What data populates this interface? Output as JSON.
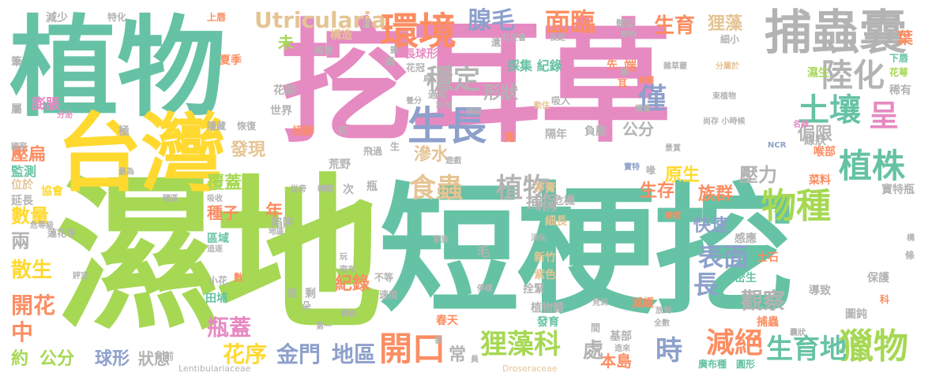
{
  "palette": {
    "pink": "#e68ac2",
    "teal": "#66c2a5",
    "green": "#a6d854",
    "yellow": "#ffd92f",
    "orange": "#fc8d62",
    "blue": "#8da0cb",
    "gray": "#b3b3b3",
    "tan": "#e5c494"
  },
  "words": {
    "w1": "挖耳草",
    "w2": "濕地",
    "w3": "短梗挖",
    "w4": "植物",
    "w5": "台灣",
    "w6": "捕蟲囊",
    "w7": "環境",
    "w8": "腺毛",
    "w9": "面臨",
    "w10": "生長",
    "w11": "陸化",
    "w12": "土壤",
    "w13": "穩定",
    "w14": "植株",
    "w15": "呈",
    "w16": "食蟲",
    "w17": "植物",
    "w18": "物種",
    "w19": "獵物",
    "w20": "開口",
    "w21": "金門",
    "w22": "地區",
    "w23": "狸藻科",
    "w24": "時",
    "w25": "減絕",
    "w26": "生育地",
    "w27": "表面",
    "w28": "長",
    "w29": "觀察",
    "w30": "瓶蓋",
    "w31": "花序",
    "w32": "開花",
    "w33": "中",
    "w34": "散生",
    "w35": "數量",
    "w36": "兩",
    "w37": "約",
    "w38": "公分",
    "w39": "球形",
    "w40": "狀態",
    "w41": "本島",
    "w42": "處",
    "w43": "常",
    "w44": "Utricularia",
    "w45": "生育",
    "w46": "狸藻",
    "w47": "僅",
    "w48": "形狀",
    "w49": "發現",
    "w50": "滲水",
    "w51": "覆蓋",
    "w52": "捕捉",
    "w53": "壓力",
    "w54": "生存",
    "w55": "原生",
    "w56": "族群",
    "w57": "侷限",
    "w58": "快速",
    "w59": "種子",
    "w60": "年",
    "w61": "紀錄",
    "w62": "公分",
    "w63": "壓扁",
    "w64": "膨脹",
    "w65": "監測",
    "w66": "延長",
    "w67": "位於",
    "w68": "協會",
    "w69": "蓮花寺",
    "w70": "田埔",
    "w71": "區域",
    "w72": "危機",
    "w73": "細長",
    "w74": "茅膏",
    "w75": "坍方",
    "w76": "毛",
    "w77": "新竹",
    "w78": "紫色",
    "w79": "拴緊",
    "w80": "植物體",
    "w81": "發育",
    "w82": "春天",
    "w83": "基部",
    "w84": "廣布種",
    "w85": "圓形",
    "w86": "減緩",
    "w87": "保護",
    "w88": "導致",
    "w89": "圖鈍",
    "w90": "捕蟲",
    "w91": "密生",
    "w92": "士石",
    "w93": "感應",
    "w94": "寶特瓶",
    "w95": "菜料",
    "w96": "喉部",
    "w97": "線狀",
    "w98": "名錄",
    "w99": "NCR",
    "w100": "尚存 小時候",
    "w101": "束植物",
    "w102": "機會",
    "w103": "動物",
    "w104": "體型",
    "w105": "細小",
    "w106": "雜草叢",
    "w107": "分屬於",
    "w108": "構造",
    "w109": "維管",
    "w110": "長球形",
    "w111": "採集 紀錄",
    "w112": "過程",
    "w113": "利用",
    "w114": "吸入",
    "w115": "動住",
    "w116": "隔年",
    "w117": "負壓",
    "w118": "寬",
    "w119": "飛過",
    "w120": "荒野",
    "w121": "陷阱",
    "w122": "從旁",
    "w123": "轉開",
    "w124": "次",
    "w125": "瓶",
    "w126": "不等",
    "w127": "速度",
    "w128": "第一",
    "w129": "藉由",
    "w130": "停棲",
    "w131": "消化",
    "w132": "家族",
    "w133": "玩",
    "w134": "密布",
    "w135": "剩",
    "w136": "小花",
    "w137": "數",
    "w138": "評定",
    "w139": "危等級",
    "w140": "吸收",
    "w141": "隱藏",
    "w142": "恢復",
    "w143": "絕跡",
    "w144": "抓",
    "w145": "世界",
    "w146": "花期",
    "w147": "夏季",
    "w148": "上唇",
    "w149": "減少",
    "w150": "特化",
    "w151": "筆",
    "w152": "屬",
    "w153": "國家",
    "w154": "極",
    "w155": "分泌",
    "w156": "最為",
    "w157": "地區",
    "w158": "追逐",
    "w159": "隨區",
    "w160": "Lentibulariaceae",
    "w161": "Droseraceae",
    "w162": "前",
    "w163": "遺",
    "w164": "紅皮書",
    "w165": "長距",
    "w166": "波",
    "w167": "先",
    "w168": "端",
    "w169": "耳",
    "w170": "稀有",
    "w171": "花萼",
    "w172": "下唇",
    "w173": "葉",
    "w174": "濕生",
    "w175": "稱",
    "w176": "景賞",
    "w177": "寶特",
    "w178": "喙",
    "w179": "放到",
    "w180": "全數",
    "w181": "見到",
    "w182": "造來",
    "w183": "間",
    "w184": "朵",
    "w185": "短",
    "w186": "甚",
    "w187": "員",
    "w188": "生",
    "w189": "科",
    "w190": "條",
    "w191": "構",
    "w192": "瞬間",
    "w193": "囊狀",
    "w194": "食罐",
    "w195": "遊戲",
    "w196": "鹽",
    "w197": "蟲",
    "w198": "花冠",
    "w199": "扁",
    "w200": "養分",
    "w201": "捕抓",
    "w202": "未"
  }
}
